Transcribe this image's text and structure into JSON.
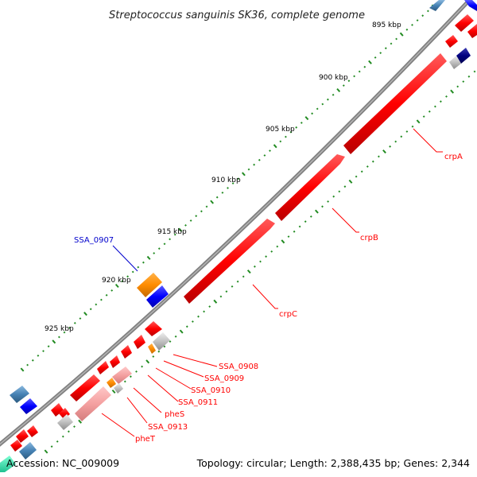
{
  "title": "Streptococcus sanguinis SK36, complete genome",
  "footer": {
    "accession": "Accession: NC_009009",
    "summary": "Topology: circular; Length: 2,388,435 bp; Genes: 2,344"
  },
  "ticks": [
    "895 kbp",
    "900 kbp",
    "905 kbp",
    "910 kbp",
    "915 kbp",
    "920 kbp",
    "925 kbp"
  ],
  "gene_labels": [
    "crpA",
    "crpB",
    "crpC",
    "SSA_0907",
    "SSA_0908",
    "SSA_0909",
    "SSA_0910",
    "SSA_0911",
    "pheS",
    "SSA_0913",
    "pheT"
  ],
  "colors": {
    "backbone": "#808080",
    "gene_red": "#ff0000",
    "gene_light_red": "#f4a0a0",
    "gene_blue": "#0000ff",
    "gene_navy": "#000080",
    "gene_steel": "#4682b4",
    "gene_orange": "#ff8c00",
    "gene_gray": "#c0c0c0",
    "tick_green": "#228b22",
    "label_red": "#ff0000",
    "label_blue": "#0000cc"
  }
}
